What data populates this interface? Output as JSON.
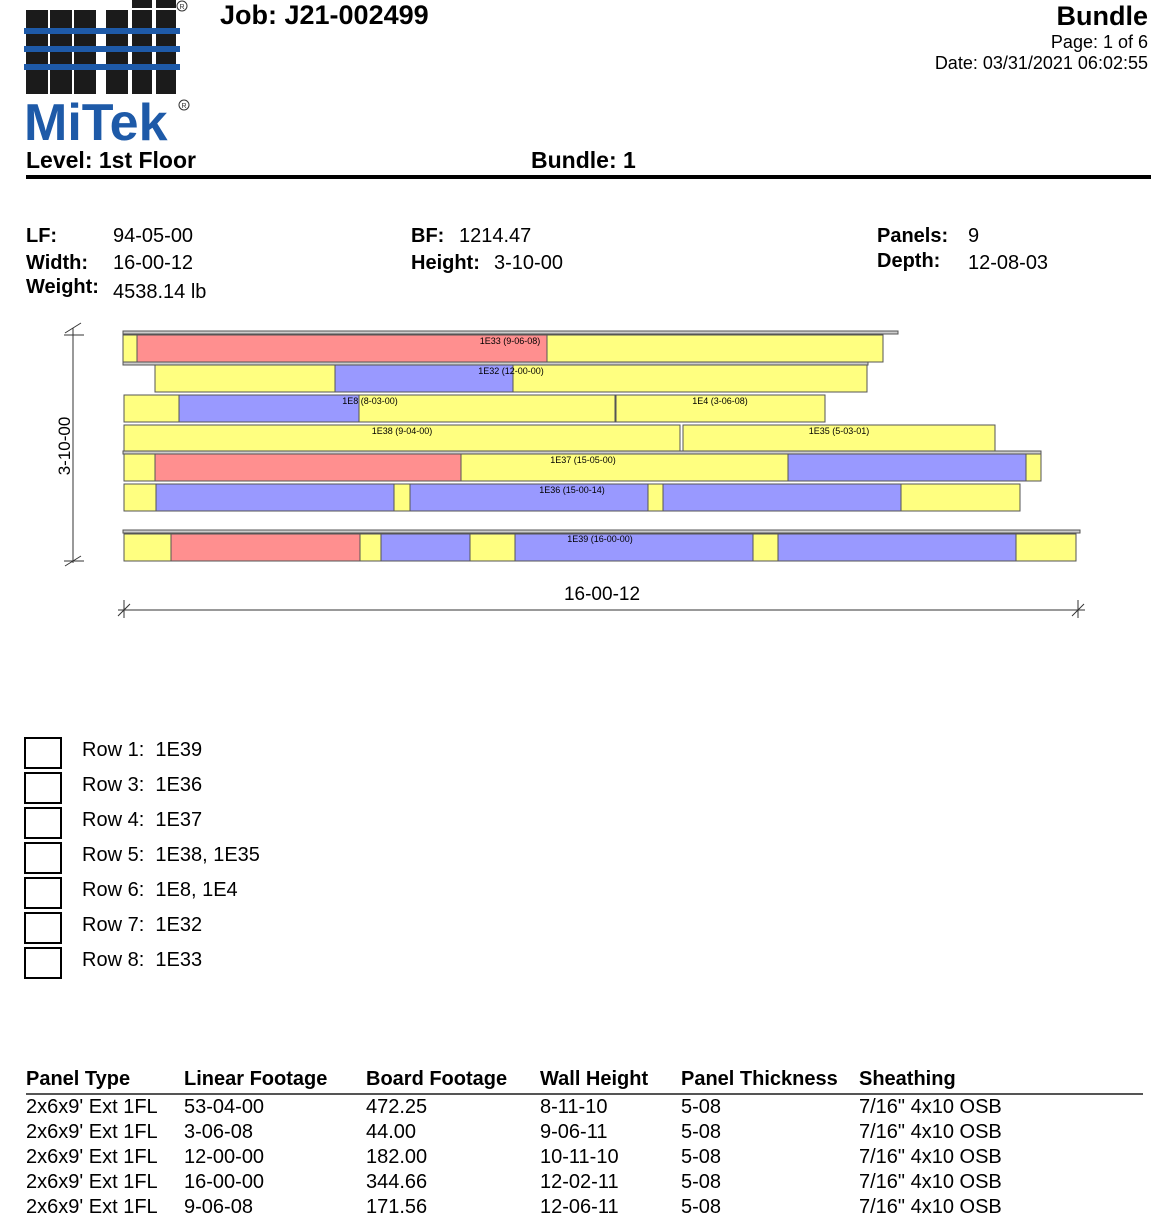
{
  "header": {
    "logo_text": "MiTek",
    "job": "Job: J21-002499",
    "title": "Bundle",
    "page": "Page: 1 of 6",
    "date": "Date: 03/31/2021 06:02:55",
    "level": "Level: 1st Floor",
    "bundle": "Bundle: 1"
  },
  "stats": {
    "lf_label": "LF:",
    "lf": "94-05-00",
    "width_label": "Width:",
    "width": "16-00-12",
    "weight_label": "Weight:",
    "weight": "4538.14 lb",
    "bf_label": "BF:",
    "bf": "1214.47",
    "height_label": "Height:",
    "height": "3-10-00",
    "panels_label": "Panels:",
    "panels": "9",
    "depth_label": "Depth:",
    "depth": "12-08-03"
  },
  "diagram": {
    "height_dim": "3-10-00",
    "width_dim": "16-00-12",
    "colors": {
      "yellow": "#ffff80",
      "red": "#ff8f8f",
      "blue": "#9999ff",
      "outline": "#555555"
    },
    "panels": [
      {
        "label": "1E33 (9-06-08)"
      },
      {
        "label": "1E32 (12-00-00)"
      },
      {
        "label": "1E8 (8-03-00)"
      },
      {
        "label": "1E4 (3-06-08)"
      },
      {
        "label": "1E38 (9-04-00)"
      },
      {
        "label": "1E35 (5-03-01)"
      },
      {
        "label": "1E37 (15-05-00)"
      },
      {
        "label": "1E36 (15-00-14)"
      },
      {
        "label": "1E39 (16-00-00)"
      }
    ]
  },
  "rows": [
    {
      "label": "Row 1:",
      "panels": "1E39"
    },
    {
      "label": "Row 3:",
      "panels": "1E36"
    },
    {
      "label": "Row 4:",
      "panels": "1E37"
    },
    {
      "label": "Row 5:",
      "panels": "1E38, 1E35"
    },
    {
      "label": "Row 6:",
      "panels": "1E8, 1E4"
    },
    {
      "label": "Row 7:",
      "panels": "1E32"
    },
    {
      "label": "Row 8:",
      "panels": "1E33"
    }
  ],
  "table": {
    "headers": [
      "Panel Type",
      "Linear Footage",
      "Board Footage",
      "Wall Height",
      "Panel Thickness",
      "Sheathing"
    ],
    "rows": [
      [
        "2x6x9' Ext 1FL",
        "53-04-00",
        "472.25",
        "8-11-10",
        "5-08",
        "7/16\" 4x10 OSB"
      ],
      [
        "2x6x9' Ext 1FL",
        "3-06-08",
        "44.00",
        "9-06-11",
        "5-08",
        "7/16\" 4x10 OSB"
      ],
      [
        "2x6x9' Ext 1FL",
        "12-00-00",
        "182.00",
        "10-11-10",
        "5-08",
        "7/16\" 4x10 OSB"
      ],
      [
        "2x6x9' Ext 1FL",
        "16-00-00",
        "344.66",
        "12-02-11",
        "5-08",
        "7/16\" 4x10 OSB"
      ],
      [
        "2x6x9' Ext 1FL",
        "9-06-08",
        "171.56",
        "12-06-11",
        "5-08",
        "7/16\" 4x10 OSB"
      ]
    ]
  }
}
